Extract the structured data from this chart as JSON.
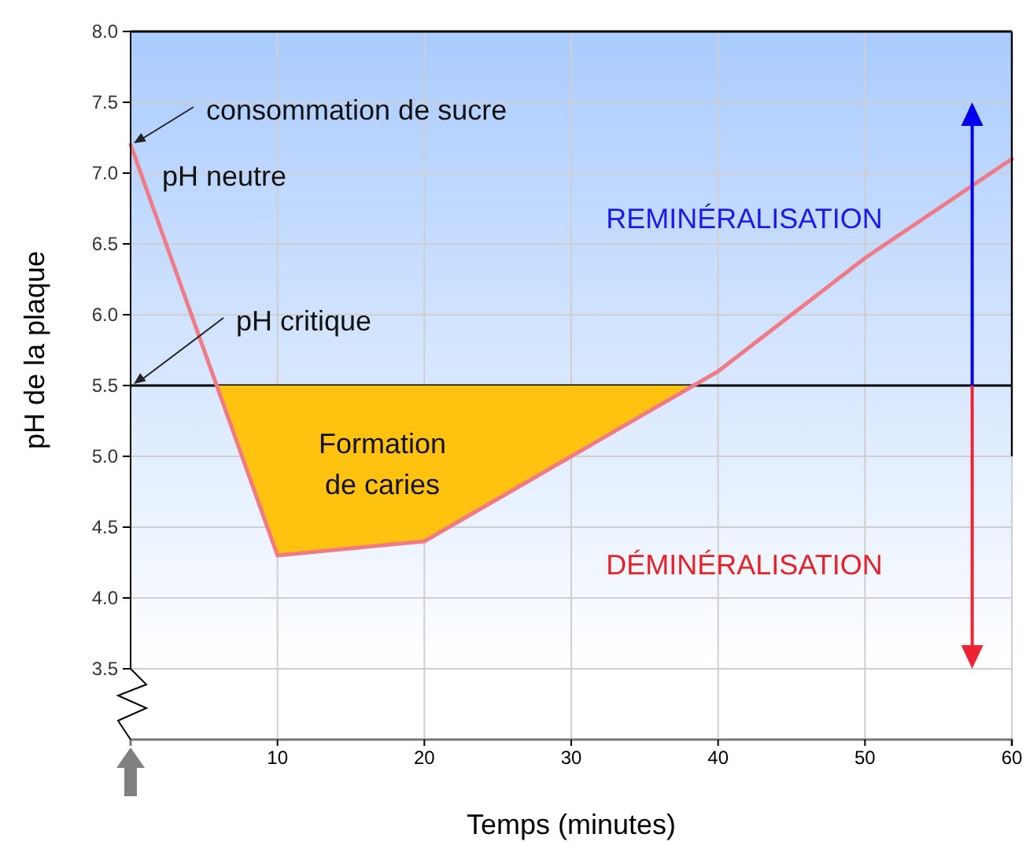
{
  "chart_data": {
    "type": "line",
    "xlabel": "Temps (minutes)",
    "ylabel": "pH de la plaque",
    "xlim": [
      0,
      60
    ],
    "ylim": [
      3.0,
      8.0
    ],
    "xticks": [
      10,
      20,
      30,
      40,
      50,
      60
    ],
    "yticks": [
      {
        "value": 3.5,
        "label": "3.5"
      },
      {
        "value": 4.0,
        "label": "4.0"
      },
      {
        "value": 4.5,
        "label": "4.5"
      },
      {
        "value": 5.0,
        "label": "5.0"
      },
      {
        "value": 5.5,
        "label": "5.5"
      },
      {
        "value": 6.0,
        "label": "6.0"
      },
      {
        "value": 6.5,
        "label": "6.5"
      },
      {
        "value": 7.0,
        "label": "7.0"
      },
      {
        "value": 7.5,
        "label": "7.5"
      },
      {
        "value": 8.0,
        "label": "8.0"
      }
    ],
    "grid": true,
    "series": [
      {
        "color": "#f07a86",
        "x": [
          0,
          10,
          20,
          30,
          40,
          50,
          60
        ],
        "values": [
          7.2,
          4.3,
          4.4,
          5.0,
          5.6,
          6.4,
          7.1
        ]
      }
    ],
    "ref_lines": [
      {
        "axis": "y",
        "value": 5.5,
        "color": "#000000"
      }
    ],
    "annotations": [
      {
        "text": "consommation de sucre",
        "x": 0,
        "y": 7.2
      },
      "pH neutre",
      {
        "text": "pH critique",
        "x": 0,
        "y": 5.5
      },
      "Formation de caries",
      "REMINÉRALISATION",
      "DÉMINÉRALISATION"
    ]
  }
}
